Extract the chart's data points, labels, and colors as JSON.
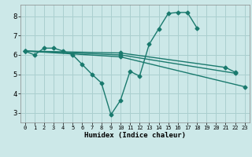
{
  "xlabel": "Humidex (Indice chaleur)",
  "bg_color": "#cce8e8",
  "grid_color": "#aacfcf",
  "line_color": "#1a7a6e",
  "xlim": [
    -0.5,
    23.5
  ],
  "ylim": [
    2.5,
    8.6
  ],
  "xticks": [
    0,
    1,
    2,
    3,
    4,
    5,
    6,
    7,
    8,
    9,
    10,
    11,
    12,
    13,
    14,
    15,
    16,
    17,
    18,
    19,
    20,
    21,
    22,
    23
  ],
  "yticks": [
    3,
    4,
    5,
    6,
    7,
    8
  ],
  "lines": [
    {
      "x": [
        0,
        1,
        2,
        3,
        4,
        5,
        6,
        7,
        8,
        9,
        10,
        11,
        12,
        13,
        14,
        15,
        16,
        17,
        18
      ],
      "y": [
        6.2,
        6.0,
        6.35,
        6.35,
        6.2,
        6.0,
        5.5,
        5.0,
        4.55,
        2.9,
        3.65,
        5.15,
        4.9,
        6.55,
        7.35,
        8.15,
        8.2,
        8.2,
        7.4
      ]
    },
    {
      "x": [
        0,
        10,
        23
      ],
      "y": [
        6.2,
        5.9,
        4.35
      ]
    },
    {
      "x": [
        0,
        10,
        22
      ],
      "y": [
        6.2,
        6.0,
        5.05
      ]
    },
    {
      "x": [
        0,
        10,
        21,
        22
      ],
      "y": [
        6.2,
        6.1,
        5.35,
        5.1
      ]
    }
  ],
  "marker": "D",
  "markersize": 2.5,
  "linewidth": 1.0
}
